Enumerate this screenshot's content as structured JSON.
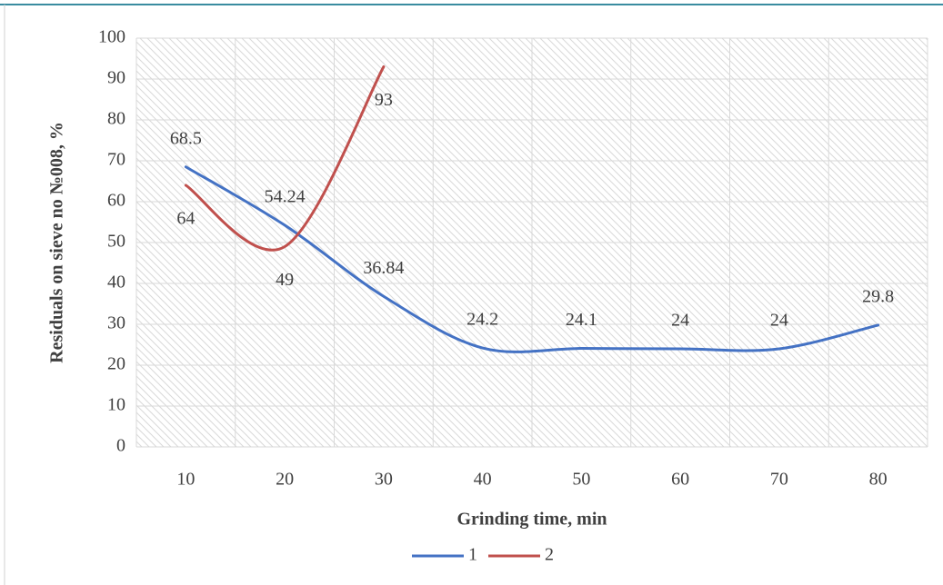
{
  "chart_data": {
    "type": "line",
    "x_label": "Grinding time, min",
    "y_label": "Residuals on sieve no №008, %",
    "categories": [
      "10",
      "20",
      "30",
      "40",
      "50",
      "60",
      "70",
      "80"
    ],
    "series": [
      {
        "name": "1",
        "color": "#4472c4",
        "values": [
          68.5,
          54.24,
          36.84,
          24.2,
          24.1,
          24,
          24,
          29.8
        ]
      },
      {
        "name": "2",
        "color": "#c0504d",
        "values": [
          64,
          49,
          93,
          null,
          null,
          null,
          null,
          null
        ]
      }
    ],
    "ylim": [
      0,
      100
    ],
    "yticks": [
      0,
      10,
      20,
      30,
      40,
      50,
      60,
      70,
      80,
      90,
      100
    ],
    "grid": true,
    "smooth": true,
    "legend": "bottom"
  }
}
